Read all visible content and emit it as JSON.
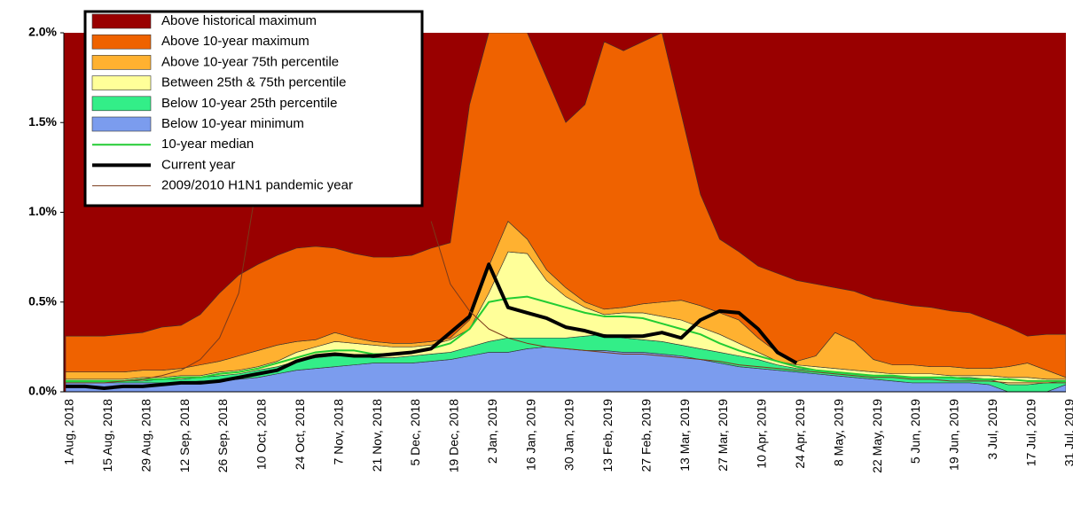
{
  "chart_data": {
    "type": "area",
    "ylim": [
      0,
      2
    ],
    "yticks": [
      {
        "value": 0,
        "label": "0.0%"
      },
      {
        "value": 0.5,
        "label": "0.5%"
      },
      {
        "value": 1,
        "label": "1.0%"
      },
      {
        "value": 1.5,
        "label": "1.5%"
      },
      {
        "value": 2,
        "label": "2.0%"
      }
    ],
    "categories": [
      "1 Aug, 2018",
      null,
      "15 Aug, 2018",
      null,
      "29 Aug, 2018",
      null,
      "12 Sep, 2018",
      null,
      "26 Sep, 2018",
      null,
      "10 Oct, 2018",
      null,
      "24 Oct, 2018",
      null,
      "7 Nov, 2018",
      null,
      "21 Nov, 2018",
      null,
      "5 Dec, 2018",
      null,
      "19 Dec, 2018",
      null,
      "2 Jan, 2019",
      null,
      "16 Jan, 2019",
      null,
      "30 Jan, 2019",
      null,
      "13 Feb, 2019",
      null,
      "27 Feb, 2019",
      null,
      "13 Mar, 2019",
      null,
      "27 Mar, 2019",
      null,
      "10 Apr, 2019",
      null,
      "24 Apr, 2019",
      null,
      "8 May, 2019",
      null,
      "22 May, 2019",
      null,
      "5 Jun, 2019",
      null,
      "19 Jun, 2019",
      null,
      "3 Jul, 2019",
      null,
      "17 Jul, 2019",
      null,
      "31 Jul, 2019"
    ],
    "series": [
      {
        "name": "Above historical maximum",
        "color": "#990000"
      },
      {
        "name": "Above 10-year maximum",
        "color": "#ef6200",
        "values": [
          0.2,
          0.2,
          0.2,
          0.21,
          0.21,
          0.24,
          0.24,
          0.28,
          0.38,
          0.45,
          0.48,
          0.5,
          0.52,
          0.52,
          0.47,
          0.47,
          0.47,
          0.48,
          0.49,
          0.52,
          0.53,
          1.2,
          1.3,
          1.05,
          1.15,
          1.07,
          0.92,
          1.1,
          1.49,
          1.43,
          1.46,
          1.5,
          1.04,
          0.62,
          0.41,
          0.38,
          0.4,
          0.44,
          0.45,
          0.4,
          0.25,
          0.28,
          0.34,
          0.35,
          0.33,
          0.33,
          0.31,
          0.31,
          0.27,
          0.22,
          0.15,
          0.2,
          0.24
        ]
      },
      {
        "name": "Above 10-year 75th percentile",
        "color": "#ffb130",
        "values": [
          0.04,
          0.04,
          0.04,
          0.04,
          0.04,
          0.04,
          0.04,
          0.06,
          0.06,
          0.08,
          0.09,
          0.09,
          0.06,
          0.04,
          0.05,
          0.03,
          0.02,
          0.02,
          0.02,
          0.02,
          0.01,
          0.05,
          0.15,
          0.17,
          0.08,
          0.06,
          0.05,
          0.03,
          0.03,
          0.03,
          0.05,
          0.08,
          0.11,
          0.12,
          0.12,
          0.13,
          0.08,
          0.05,
          0.02,
          0.06,
          0.2,
          0.16,
          0.07,
          0.05,
          0.05,
          0.04,
          0.05,
          0.04,
          0.04,
          0.06,
          0.08,
          0.05,
          0.01
        ]
      },
      {
        "name": "Between 25th & 75th percentile",
        "color": "#ffff99",
        "values": [
          0.01,
          0.01,
          0.01,
          0.01,
          0.02,
          0.01,
          0.02,
          0.01,
          0.02,
          0.02,
          0.02,
          0.03,
          0.05,
          0.06,
          0.08,
          0.07,
          0.07,
          0.06,
          0.05,
          0.05,
          0.07,
          0.1,
          0.27,
          0.48,
          0.47,
          0.32,
          0.23,
          0.16,
          0.11,
          0.14,
          0.15,
          0.14,
          0.14,
          0.12,
          0.1,
          0.07,
          0.04,
          0.02,
          0.02,
          0.02,
          0.02,
          0.02,
          0.02,
          0.01,
          0.02,
          0.02,
          0.01,
          0.01,
          0.02,
          0.04,
          0.04,
          0.02,
          0.01
        ]
      },
      {
        "name": "Below 10-year 25th percentile",
        "color": "#33ee88",
        "values": [
          0.01,
          0.01,
          0.01,
          0.01,
          0.01,
          0.02,
          0.02,
          0.02,
          0.03,
          0.03,
          0.04,
          0.04,
          0.05,
          0.06,
          0.06,
          0.05,
          0.03,
          0.03,
          0.04,
          0.04,
          0.04,
          0.05,
          0.06,
          0.08,
          0.06,
          0.05,
          0.06,
          0.08,
          0.09,
          0.08,
          0.07,
          0.07,
          0.06,
          0.06,
          0.06,
          0.06,
          0.05,
          0.03,
          0.02,
          0.02,
          0.02,
          0.02,
          0.02,
          0.03,
          0.03,
          0.03,
          0.03,
          0.03,
          0.03,
          0.04,
          0.04,
          0.05,
          0.02
        ]
      },
      {
        "name": "Below 10-year minimum",
        "color": "#7b9cee",
        "values": [
          0.05,
          0.05,
          0.05,
          0.05,
          0.05,
          0.05,
          0.05,
          0.06,
          0.06,
          0.07,
          0.08,
          0.1,
          0.12,
          0.13,
          0.14,
          0.15,
          0.16,
          0.16,
          0.16,
          0.17,
          0.18,
          0.2,
          0.22,
          0.22,
          0.24,
          0.25,
          0.24,
          0.23,
          0.23,
          0.22,
          0.22,
          0.21,
          0.2,
          0.18,
          0.16,
          0.14,
          0.13,
          0.12,
          0.11,
          0.1,
          0.09,
          0.08,
          0.07,
          0.06,
          0.05,
          0.05,
          0.05,
          0.05,
          0.04,
          0,
          0,
          0,
          0.04
        ]
      },
      {
        "name": "10-year median",
        "color": "#22cc33",
        "type": "line",
        "width": 2,
        "values": [
          0.06,
          0.06,
          0.06,
          0.06,
          0.07,
          0.07,
          0.08,
          0.08,
          0.1,
          0.11,
          0.13,
          0.16,
          0.19,
          0.22,
          0.23,
          0.23,
          0.21,
          0.21,
          0.22,
          0.24,
          0.27,
          0.35,
          0.5,
          0.52,
          0.53,
          0.5,
          0.47,
          0.44,
          0.42,
          0.42,
          0.41,
          0.38,
          0.35,
          0.32,
          0.27,
          0.23,
          0.2,
          0.17,
          0.14,
          0.12,
          0.11,
          0.1,
          0.09,
          0.09,
          0.08,
          0.08,
          0.08,
          0.07,
          0.07,
          0.07,
          0.06,
          0.06,
          0.06
        ]
      },
      {
        "name": "Current year",
        "color": "#000000",
        "type": "line",
        "width": 4,
        "values": [
          0.03,
          0.03,
          0.02,
          0.03,
          0.03,
          0.04,
          0.05,
          0.05,
          0.06,
          0.08,
          0.1,
          0.12,
          0.17,
          0.2,
          0.21,
          0.2,
          0.2,
          0.21,
          0.22,
          0.24,
          0.33,
          0.42,
          0.71,
          0.47,
          0.44,
          0.41,
          0.36,
          0.34,
          0.31,
          0.31,
          0.31,
          0.33,
          0.3,
          0.4,
          0.45,
          0.44,
          0.35,
          0.22,
          0.16,
          null,
          null,
          null,
          null,
          null,
          null,
          null,
          null,
          null,
          null,
          null,
          null,
          null,
          null
        ]
      },
      {
        "name": "2009/2010 H1N1 pandemic year",
        "color": "#7a3a1a",
        "type": "line",
        "width": 1,
        "values": [
          0.05,
          0.05,
          0.05,
          0.06,
          0.07,
          0.09,
          0.12,
          0.18,
          0.3,
          0.55,
          1.2,
          null,
          null,
          null,
          null,
          null,
          null,
          null,
          null,
          0.95,
          0.6,
          0.45,
          0.35,
          0.3,
          0.27,
          0.25,
          0.24,
          0.23,
          0.22,
          0.21,
          0.21,
          0.2,
          0.19,
          0.18,
          0.17,
          0.15,
          0.14,
          0.13,
          0.12,
          0.11,
          0.1,
          0.09,
          0.08,
          0.08,
          0.07,
          0.07,
          0.06,
          0.06,
          0.06,
          0.05,
          0.05,
          0.05,
          0.05
        ]
      }
    ]
  }
}
